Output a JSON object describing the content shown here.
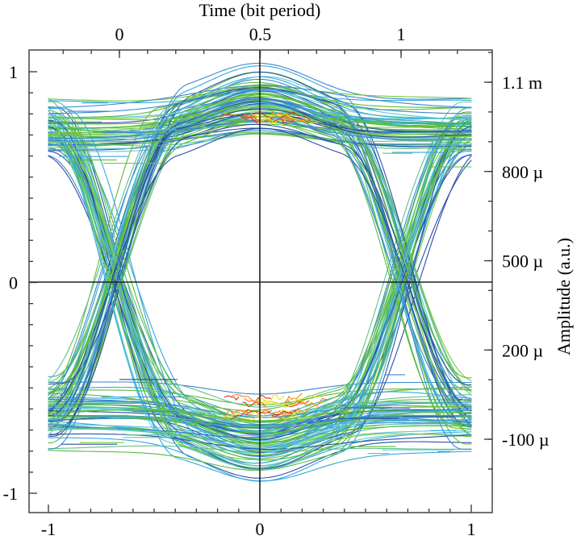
{
  "chart_data": {
    "type": "line",
    "chart_kind": "eye diagram",
    "top_axis": {
      "label": "Time (bit period)",
      "ticks": [
        0,
        0.5,
        1
      ],
      "tick_labels": [
        "0",
        "0.5",
        "1"
      ],
      "range": [
        -0.28,
        1.28
      ]
    },
    "bottom_axis": {
      "ticks": [
        -1,
        0,
        1
      ],
      "tick_labels": [
        "-1",
        "0",
        "1"
      ],
      "range": [
        -1,
        1
      ]
    },
    "left_axis": {
      "ticks": [
        -1,
        0,
        1
      ],
      "tick_labels": [
        "-1",
        "0",
        "1"
      ],
      "range": [
        -1.1,
        1.0
      ]
    },
    "right_axis": {
      "label": "Amplitude (a.u.)",
      "ticks": [
        -100,
        200,
        500,
        800,
        1100
      ],
      "tick_labels": [
        "-100 µ",
        "200 µ",
        "500 µ",
        "800 µ",
        "1.1 m"
      ]
    },
    "eye": {
      "high_level": 0.72,
      "low_level": -0.62,
      "crossing_x": [
        -0.68,
        0.68
      ],
      "crossing_y": 0.05,
      "peak_high": 0.78,
      "peak_low": -0.68
    },
    "colors": {
      "traces": [
        "#2a4fa3",
        "#3d86cf",
        "#35a8dc",
        "#5cc9d2",
        "#62c08a",
        "#58bb3a",
        "#78c83a"
      ],
      "hotspot": [
        "#e8e020",
        "#f08020",
        "#e03020"
      ]
    },
    "grid": false
  }
}
